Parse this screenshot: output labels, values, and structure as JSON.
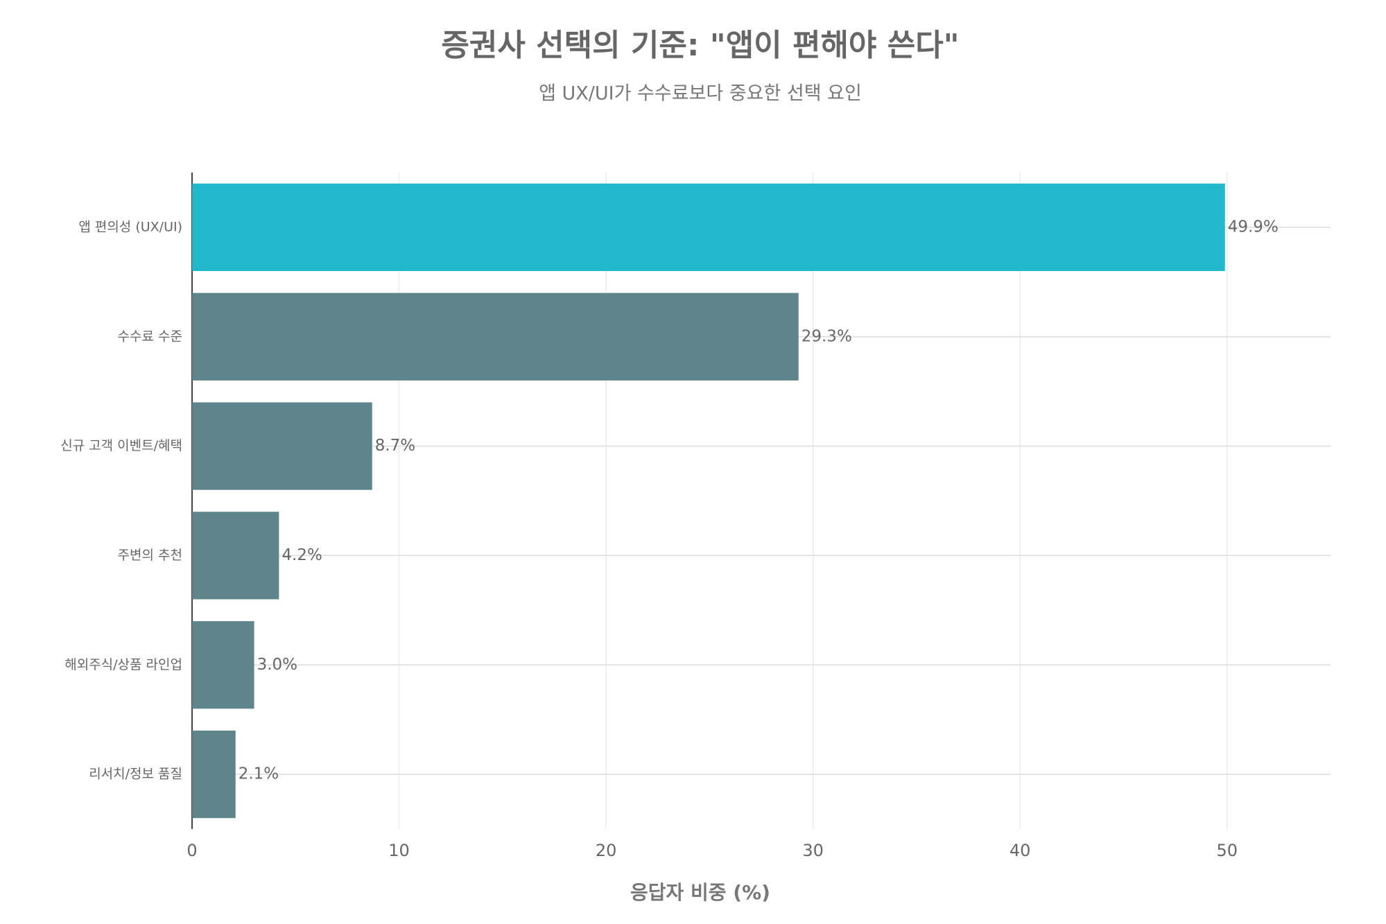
{
  "chart_data": {
    "type": "hbar",
    "title": "증권사 선택의 기준: \"앱이 편해야 쓴다\"",
    "subtitle": "앱 UX/UI가 수수료보다 중요한 선택 요인",
    "x_label": "응답자 비중 (%)",
    "categories": [
      "앱 편의성 (UX/UI)",
      "수수료 수준",
      "신규 고객 이벤트/혜택",
      "주변의 추천",
      "해외주식/상품 라인업",
      "리서치/정보 품질"
    ],
    "values": [
      49.9,
      29.3,
      8.7,
      4.2,
      3.0,
      2.1
    ],
    "value_labels": [
      "49.9%",
      "29.3%",
      "8.7%",
      "4.2%",
      "3.0%",
      "2.1%"
    ],
    "colors": [
      "#22b8cc",
      "#5e858b",
      "#5e858b",
      "#5e858b",
      "#5e858b",
      "#5e858b"
    ],
    "xlim": [
      0,
      55
    ],
    "xticks": [
      0,
      10,
      20,
      30,
      40,
      50
    ],
    "grid": true
  }
}
